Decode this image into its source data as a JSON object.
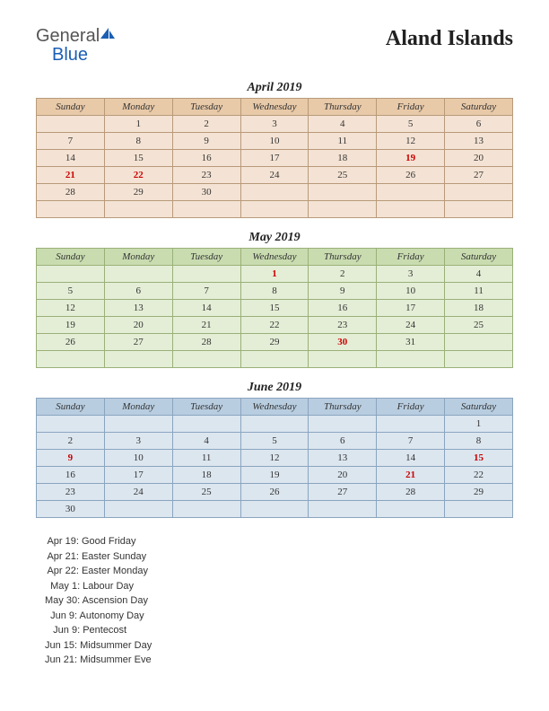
{
  "logo": {
    "general": "General",
    "blue": "Blue"
  },
  "title": "Aland Islands",
  "dayHeaders": [
    "Sunday",
    "Monday",
    "Tuesday",
    "Wednesday",
    "Thursday",
    "Friday",
    "Saturday"
  ],
  "months": [
    {
      "name": "April 2019",
      "colors": {
        "header_bg": "#e8c9a8",
        "body_bg": "#f4e3d4",
        "border": "#b89a7a"
      },
      "weeks": [
        [
          "",
          "1",
          "2",
          "3",
          "4",
          "5",
          "6"
        ],
        [
          "7",
          "8",
          "9",
          "10",
          "11",
          "12",
          "13"
        ],
        [
          "14",
          "15",
          "16",
          "17",
          "18",
          "19",
          "20"
        ],
        [
          "21",
          "22",
          "23",
          "24",
          "25",
          "26",
          "27"
        ],
        [
          "28",
          "29",
          "30",
          "",
          "",
          "",
          ""
        ],
        [
          "",
          "",
          "",
          "",
          "",
          "",
          ""
        ]
      ],
      "holidays": [
        "19",
        "21",
        "22"
      ]
    },
    {
      "name": "May 2019",
      "colors": {
        "header_bg": "#c9dcb0",
        "body_bg": "#e4eed6",
        "border": "#9ab078"
      },
      "weeks": [
        [
          "",
          "",
          "",
          "1",
          "2",
          "3",
          "4"
        ],
        [
          "5",
          "6",
          "7",
          "8",
          "9",
          "10",
          "11"
        ],
        [
          "12",
          "13",
          "14",
          "15",
          "16",
          "17",
          "18"
        ],
        [
          "19",
          "20",
          "21",
          "22",
          "23",
          "24",
          "25"
        ],
        [
          "26",
          "27",
          "28",
          "29",
          "30",
          "31",
          ""
        ],
        [
          "",
          "",
          "",
          "",
          "",
          "",
          ""
        ]
      ],
      "holidays": [
        "1",
        "30"
      ]
    },
    {
      "name": "June 2019",
      "colors": {
        "header_bg": "#b8cde0",
        "body_bg": "#dce6ef",
        "border": "#8aa5bf"
      },
      "weeks": [
        [
          "",
          "",
          "",
          "",
          "",
          "",
          "1"
        ],
        [
          "2",
          "3",
          "4",
          "5",
          "6",
          "7",
          "8"
        ],
        [
          "9",
          "10",
          "11",
          "12",
          "13",
          "14",
          "15"
        ],
        [
          "16",
          "17",
          "18",
          "19",
          "20",
          "21",
          "22"
        ],
        [
          "23",
          "24",
          "25",
          "26",
          "27",
          "28",
          "29"
        ],
        [
          "30",
          "",
          "",
          "",
          "",
          "",
          ""
        ]
      ],
      "holidays": [
        "9",
        "15",
        "21"
      ]
    }
  ],
  "events": [
    " Apr 19: Good Friday",
    " Apr 21: Easter Sunday",
    " Apr 22: Easter Monday",
    "  May 1: Labour Day",
    "May 30: Ascension Day",
    "  Jun 9: Autonomy Day",
    "   Jun 9: Pentecost",
    "Jun 15: Midsummer Day",
    "Jun 21: Midsummer Eve"
  ]
}
